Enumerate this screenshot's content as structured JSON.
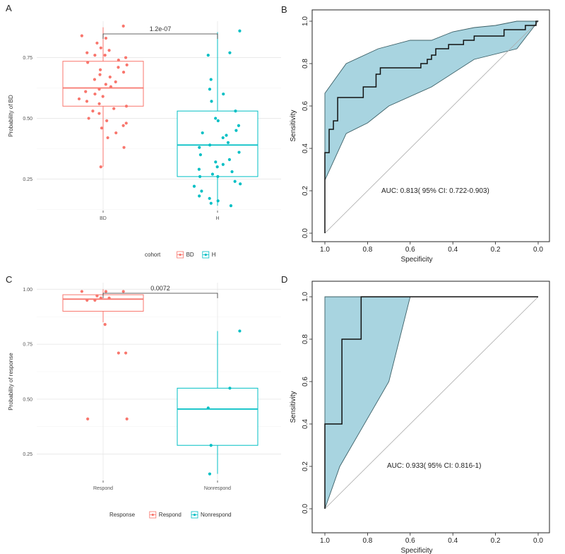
{
  "panels": {
    "A": "A",
    "B": "B",
    "C": "C",
    "D": "D"
  },
  "colors": {
    "red": "#F8766D",
    "teal": "#00BFC4",
    "ci_fill": "#a8d4e0",
    "ci_edge": "#3b5f66",
    "roc_line": "#111111",
    "diag": "#aaaaaa"
  },
  "chart_data": [
    {
      "id": "A",
      "type": "box-jitter",
      "title": "",
      "xlabel": "",
      "ylabel": "Probability of BD",
      "categories": [
        "BD",
        "H"
      ],
      "ylim": [
        0.12,
        0.9
      ],
      "yticks": [
        0.25,
        0.5,
        0.75
      ],
      "ytick_labels": [
        "0.25",
        "0.50",
        "0.75"
      ],
      "pvalue": "1.2e-07",
      "legend": {
        "title": "cohort",
        "items": [
          "BD",
          "H"
        ]
      },
      "boxes": [
        {
          "category": "BD",
          "color": "red",
          "min": 0.3,
          "q1": 0.55,
          "median": 0.625,
          "q3": 0.735,
          "max": 0.875
        },
        {
          "category": "H",
          "color": "teal",
          "min": 0.14,
          "q1": 0.26,
          "median": 0.39,
          "q3": 0.53,
          "max": 0.855
        }
      ],
      "points": [
        {
          "category": "BD",
          "values": [
            0.88,
            0.84,
            0.83,
            0.81,
            0.79,
            0.78,
            0.77,
            0.76,
            0.76,
            0.75,
            0.74,
            0.73,
            0.72,
            0.71,
            0.7,
            0.69,
            0.68,
            0.67,
            0.66,
            0.65,
            0.64,
            0.63,
            0.62,
            0.61,
            0.6,
            0.59,
            0.58,
            0.57,
            0.56,
            0.55,
            0.54,
            0.53,
            0.52,
            0.5,
            0.49,
            0.48,
            0.47,
            0.46,
            0.44,
            0.42,
            0.38,
            0.3
          ]
        },
        {
          "category": "H",
          "values": [
            0.86,
            0.77,
            0.76,
            0.66,
            0.62,
            0.6,
            0.57,
            0.53,
            0.5,
            0.49,
            0.47,
            0.45,
            0.44,
            0.43,
            0.42,
            0.4,
            0.39,
            0.38,
            0.36,
            0.35,
            0.33,
            0.32,
            0.31,
            0.3,
            0.29,
            0.28,
            0.27,
            0.26,
            0.26,
            0.24,
            0.23,
            0.22,
            0.2,
            0.18,
            0.17,
            0.16,
            0.15,
            0.14
          ]
        }
      ]
    },
    {
      "id": "B",
      "type": "roc",
      "xlabel": "Specificity",
      "ylabel": "Sensitivity",
      "xticks": [
        1.0,
        0.8,
        0.6,
        0.4,
        0.2,
        0.0
      ],
      "xtick_labels": [
        "1.0",
        "0.8",
        "0.6",
        "0.4",
        "0.2",
        "0.0"
      ],
      "yticks": [
        0.0,
        0.2,
        0.4,
        0.6,
        0.8,
        1.0
      ],
      "ytick_labels": [
        "0.0",
        "0.2",
        "0.4",
        "0.6",
        "0.8",
        "1.0"
      ],
      "auc_label": "AUC: 0.813( 95% CI: 0.722-0.903)",
      "curve": [
        [
          1.0,
          0.0
        ],
        [
          1.0,
          0.38
        ],
        [
          0.98,
          0.38
        ],
        [
          0.98,
          0.49
        ],
        [
          0.96,
          0.49
        ],
        [
          0.96,
          0.53
        ],
        [
          0.94,
          0.53
        ],
        [
          0.94,
          0.64
        ],
        [
          0.82,
          0.64
        ],
        [
          0.82,
          0.69
        ],
        [
          0.76,
          0.69
        ],
        [
          0.76,
          0.75
        ],
        [
          0.74,
          0.75
        ],
        [
          0.74,
          0.78
        ],
        [
          0.55,
          0.78
        ],
        [
          0.55,
          0.8
        ],
        [
          0.52,
          0.8
        ],
        [
          0.52,
          0.82
        ],
        [
          0.5,
          0.82
        ],
        [
          0.5,
          0.84
        ],
        [
          0.48,
          0.84
        ],
        [
          0.48,
          0.87
        ],
        [
          0.42,
          0.87
        ],
        [
          0.42,
          0.89
        ],
        [
          0.35,
          0.89
        ],
        [
          0.35,
          0.91
        ],
        [
          0.3,
          0.91
        ],
        [
          0.3,
          0.93
        ],
        [
          0.16,
          0.93
        ],
        [
          0.16,
          0.96
        ],
        [
          0.06,
          0.96
        ],
        [
          0.06,
          0.98
        ],
        [
          0.01,
          0.98
        ],
        [
          0.01,
          1.0
        ],
        [
          0.0,
          1.0
        ]
      ],
      "ci_upper": [
        [
          1.0,
          0.66
        ],
        [
          0.9,
          0.8
        ],
        [
          0.75,
          0.87
        ],
        [
          0.6,
          0.91
        ],
        [
          0.5,
          0.91
        ],
        [
          0.4,
          0.95
        ],
        [
          0.3,
          0.97
        ],
        [
          0.2,
          0.98
        ],
        [
          0.1,
          1.0
        ],
        [
          0.0,
          1.0
        ]
      ],
      "ci_lower": [
        [
          1.0,
          0.25
        ],
        [
          0.9,
          0.47
        ],
        [
          0.8,
          0.52
        ],
        [
          0.7,
          0.6
        ],
        [
          0.5,
          0.69
        ],
        [
          0.3,
          0.82
        ],
        [
          0.1,
          0.87
        ],
        [
          0.0,
          1.0
        ]
      ]
    },
    {
      "id": "C",
      "type": "box-jitter",
      "title": "",
      "xlabel": "",
      "ylabel": "Probability of response",
      "categories": [
        "Respond",
        "Nonrespond"
      ],
      "ylim": [
        0.13,
        1.03
      ],
      "yticks": [
        0.25,
        0.5,
        0.75,
        1.0
      ],
      "ytick_labels": [
        "0.25",
        "0.50",
        "0.75",
        "1.00"
      ],
      "pvalue": "0.0072",
      "legend": {
        "title": "Response",
        "items": [
          "Respond",
          "Nonrespond"
        ]
      },
      "boxes": [
        {
          "category": "Respond",
          "color": "red",
          "min": 0.85,
          "q1": 0.9,
          "median": 0.955,
          "q3": 0.975,
          "max": 1.0
        },
        {
          "category": "Nonrespond",
          "color": "teal",
          "min": 0.16,
          "q1": 0.29,
          "median": 0.455,
          "q3": 0.55,
          "max": 0.81
        }
      ],
      "points": [
        {
          "category": "Respond",
          "values": [
            0.99,
            0.99,
            0.99,
            0.97,
            0.96,
            0.96,
            0.95,
            0.95,
            0.84,
            0.71,
            0.71,
            0.41,
            0.41
          ]
        },
        {
          "category": "Nonrespond",
          "values": [
            0.81,
            0.55,
            0.46,
            0.29,
            0.16
          ]
        }
      ]
    },
    {
      "id": "D",
      "type": "roc",
      "xlabel": "Specificity",
      "ylabel": "Sensitivity",
      "xticks": [
        1.0,
        0.8,
        0.6,
        0.4,
        0.2,
        0.0
      ],
      "xtick_labels": [
        "1.0",
        "0.8",
        "0.6",
        "0.4",
        "0.2",
        "0.0"
      ],
      "yticks": [
        0.0,
        0.2,
        0.4,
        0.6,
        0.8,
        1.0
      ],
      "ytick_labels": [
        "0.0",
        "0.2",
        "0.4",
        "0.6",
        "0.8",
        "1.0"
      ],
      "auc_label": "AUC: 0.933( 95% CI: 0.816-1)",
      "curve": [
        [
          1.0,
          0.0
        ],
        [
          1.0,
          0.4
        ],
        [
          0.92,
          0.4
        ],
        [
          0.92,
          0.8
        ],
        [
          0.83,
          0.8
        ],
        [
          0.83,
          1.0
        ],
        [
          0.0,
          1.0
        ]
      ],
      "ci_upper": [
        [
          1.0,
          1.0
        ],
        [
          0.6,
          1.0
        ]
      ],
      "ci_lower": [
        [
          1.0,
          0.0
        ],
        [
          0.93,
          0.2
        ],
        [
          0.7,
          0.6
        ],
        [
          0.6,
          1.0
        ]
      ]
    }
  ]
}
